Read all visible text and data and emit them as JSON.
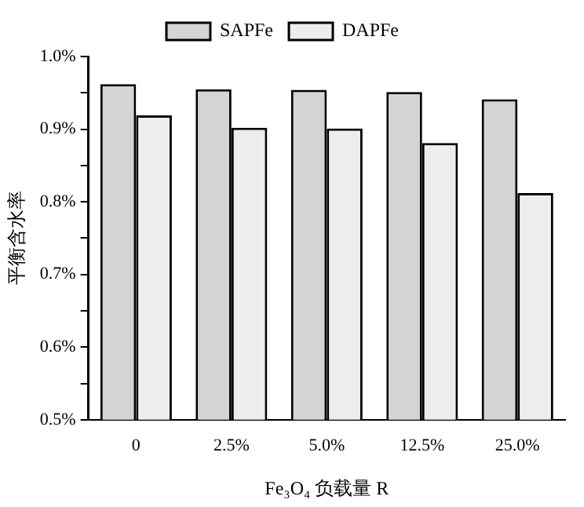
{
  "chart_data": {
    "type": "bar",
    "xlabel": "Fe₃O₄ 负载量 R",
    "ylabel": "平衡含水率",
    "categories": [
      "0",
      "2.5%",
      "5.0%",
      "12.5%",
      "25.0%"
    ],
    "series": [
      {
        "name": "SAPFe",
        "color": "#d4d4d4",
        "values": [
          0.962,
          0.955,
          0.954,
          0.951,
          0.941
        ]
      },
      {
        "name": "DAPFe",
        "color": "#ededed",
        "values": [
          0.919,
          0.902,
          0.901,
          0.881,
          0.812
        ]
      }
    ],
    "ylim": [
      0.5,
      1.0
    ],
    "yticks": [
      {
        "value": 0.5,
        "label": "0.5%"
      },
      {
        "value": 0.55,
        "label": null
      },
      {
        "value": 0.6,
        "label": "0.6%"
      },
      {
        "value": 0.65,
        "label": null
      },
      {
        "value": 0.7,
        "label": "0.7%"
      },
      {
        "value": 0.75,
        "label": null
      },
      {
        "value": 0.8,
        "label": "0.8%"
      },
      {
        "value": 0.85,
        "label": null
      },
      {
        "value": 0.9,
        "label": "0.9%"
      },
      {
        "value": 0.95,
        "label": null
      },
      {
        "value": 1.0,
        "label": "1.0%"
      }
    ],
    "grid": false,
    "legend": "top"
  }
}
